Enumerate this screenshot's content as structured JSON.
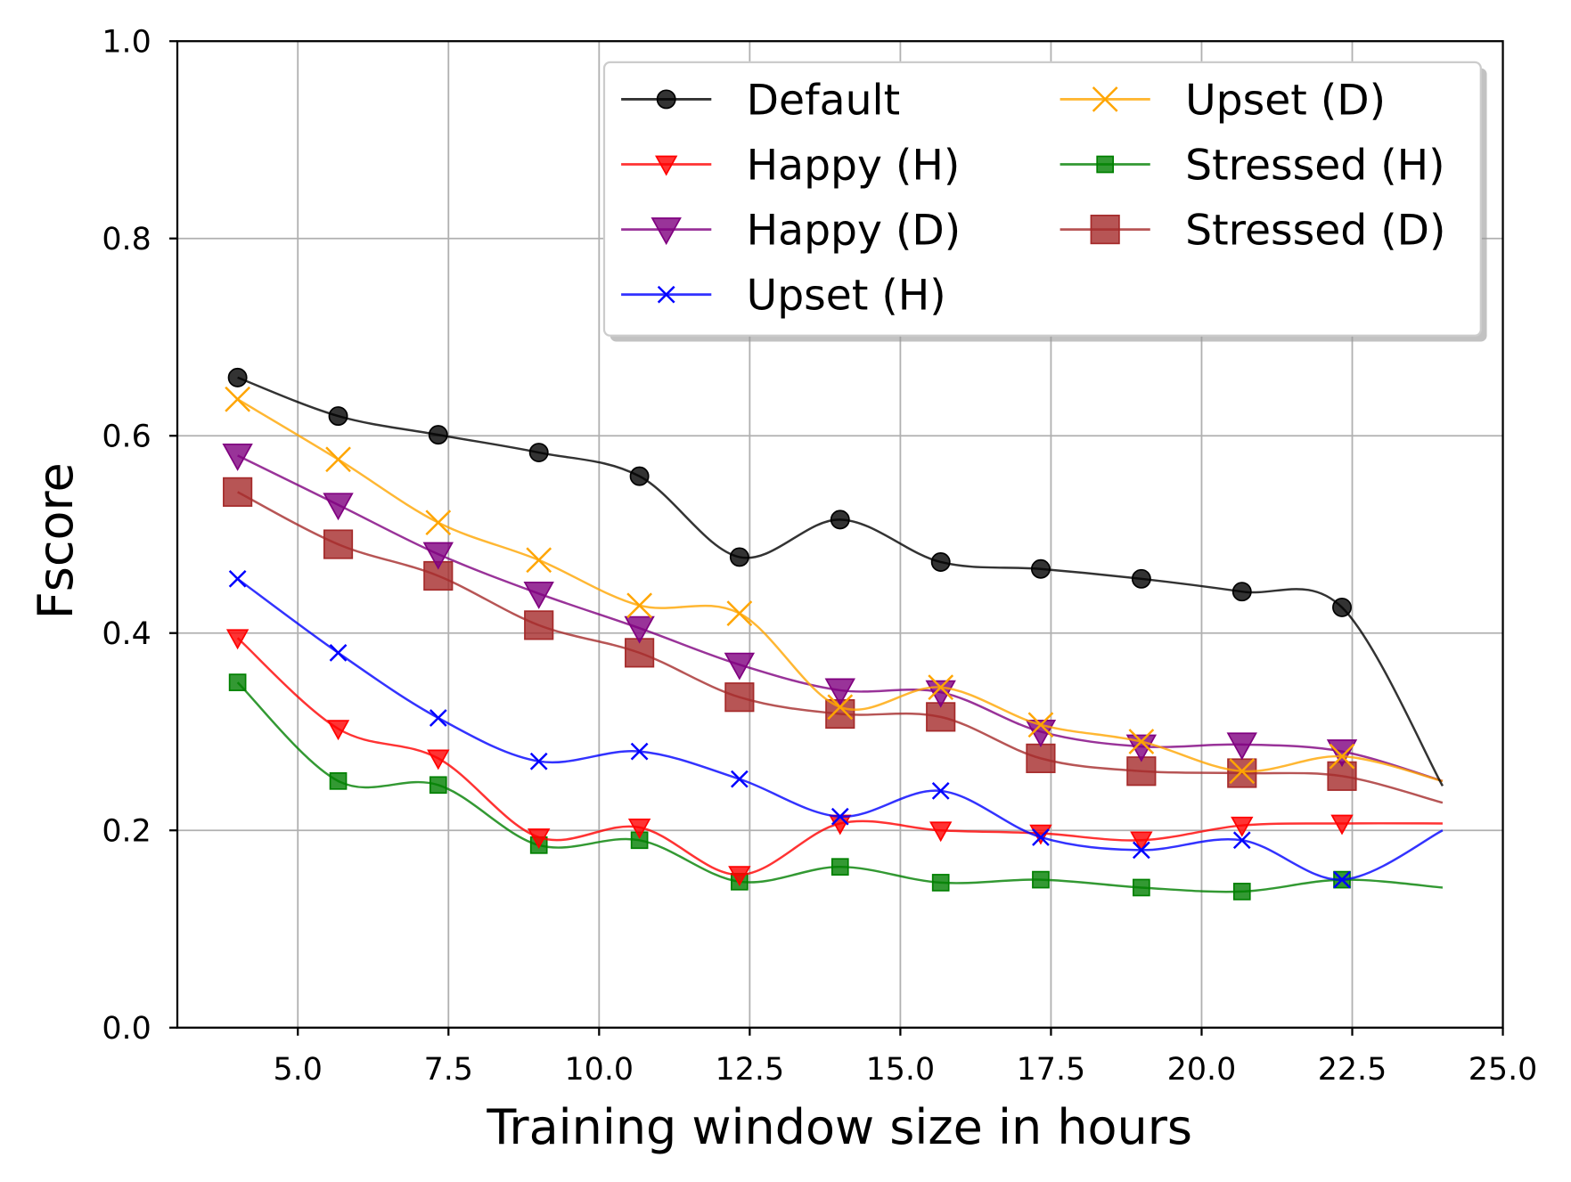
{
  "chart_data": {
    "type": "line",
    "title": "",
    "xlabel": "Training window size in hours",
    "ylabel": "Fscore",
    "xlim": [
      3.0,
      25.0
    ],
    "ylim": [
      0.0,
      1.0
    ],
    "xticks": [
      "5.0",
      "7.5",
      "10.0",
      "12.5",
      "15.0",
      "17.5",
      "20.0",
      "22.5",
      "25.0"
    ],
    "xtick_values": [
      5,
      7.5,
      10,
      12.5,
      15,
      17.5,
      20,
      22.5,
      25
    ],
    "yticks": [
      "0.0",
      "0.2",
      "0.4",
      "0.6",
      "0.8",
      "1.0"
    ],
    "ytick_values": [
      0,
      0.2,
      0.4,
      0.6,
      0.8,
      1.0
    ],
    "grid": true,
    "legend_position": "top-right",
    "x": [
      4.0,
      5.67,
      7.33,
      9.0,
      10.67,
      12.33,
      14.0,
      15.67,
      17.33,
      19.0,
      20.67,
      22.33,
      24.0
    ],
    "series": [
      {
        "name": "Default",
        "color": "#000000",
        "marker": "circle",
        "size": "small",
        "values": [
          0.659,
          0.62,
          0.601,
          0.583,
          0.559,
          0.477,
          0.515,
          0.472,
          0.465,
          0.455,
          0.442,
          0.426,
          0.245
        ]
      },
      {
        "name": "Happy (H)",
        "color": "#ff0000",
        "marker": "triangle-down",
        "size": "small",
        "values": [
          0.395,
          0.303,
          0.273,
          0.193,
          0.203,
          0.155,
          0.207,
          0.2,
          0.197,
          0.19,
          0.205,
          0.207,
          0.207
        ]
      },
      {
        "name": "Happy (D)",
        "color": "#800080",
        "marker": "triangle-down",
        "size": "large",
        "values": [
          0.58,
          0.53,
          0.48,
          0.44,
          0.405,
          0.368,
          0.342,
          0.34,
          0.3,
          0.285,
          0.287,
          0.28,
          0.25
        ]
      },
      {
        "name": "Upset (H)",
        "color": "#0000ff",
        "marker": "x",
        "size": "small",
        "values": [
          0.455,
          0.38,
          0.314,
          0.27,
          0.28,
          0.252,
          0.214,
          0.24,
          0.193,
          0.18,
          0.19,
          0.15,
          0.2
        ]
      },
      {
        "name": "Upset (D)",
        "color": "#ffa500",
        "marker": "x",
        "size": "large",
        "values": [
          0.637,
          0.576,
          0.512,
          0.474,
          0.428,
          0.42,
          0.325,
          0.345,
          0.307,
          0.29,
          0.26,
          0.275,
          0.25
        ]
      },
      {
        "name": "Stressed (H)",
        "color": "#008000",
        "marker": "square",
        "size": "small",
        "values": [
          0.35,
          0.25,
          0.246,
          0.185,
          0.19,
          0.148,
          0.163,
          0.147,
          0.15,
          0.142,
          0.138,
          0.15,
          0.142
        ]
      },
      {
        "name": "Stressed (D)",
        "color": "#a52a2a",
        "marker": "square",
        "size": "large",
        "values": [
          0.543,
          0.49,
          0.458,
          0.408,
          0.38,
          0.335,
          0.318,
          0.315,
          0.273,
          0.26,
          0.258,
          0.255,
          0.228
        ]
      }
    ]
  }
}
